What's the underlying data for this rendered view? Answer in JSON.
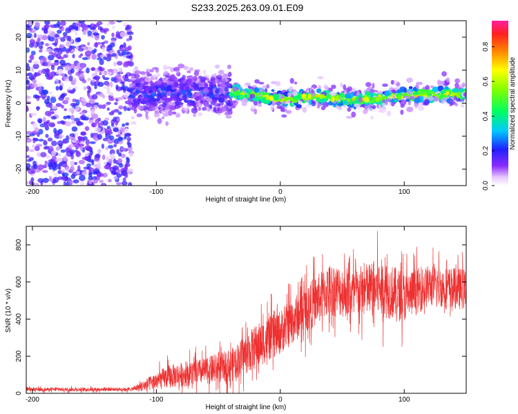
{
  "title": "S233.2025.263.09.01.E09",
  "chart_data": [
    {
      "type": "heatmap",
      "name": "spectrogram",
      "title": "S233.2025.263.09.01.E09",
      "xlabel": "Height of straight line (km)",
      "ylabel": "Frequency (Hz)",
      "xlim": [
        -205,
        150
      ],
      "ylim": [
        -25,
        25
      ],
      "xticks": [
        -200,
        -100,
        0,
        100
      ],
      "yticks": [
        -20,
        -10,
        0,
        10,
        20
      ],
      "colorbar": {
        "label": "Normalized spectral amplitude",
        "range": [
          0,
          0.95
        ],
        "ticks": [
          "0.0",
          "0.2",
          "0.4",
          "0.6",
          "0.8"
        ]
      },
      "description_regions": [
        {
          "x_range": [
            -205,
            -120
          ],
          "freq_spread_hz": 25,
          "mean_amplitude": 0.12
        },
        {
          "x_range": [
            -120,
            -40
          ],
          "freq_spread_hz": 10,
          "mean_amplitude": 0.2
        },
        {
          "x_range": [
            -40,
            150
          ],
          "freq_center_hz": 2,
          "freq_spread_hz": 3,
          "mean_amplitude": 0.6
        }
      ],
      "ridge_points": [
        {
          "x": -40,
          "y": 3.5
        },
        {
          "x": -20,
          "y": 2.5
        },
        {
          "x": 0,
          "y": 1.0
        },
        {
          "x": 20,
          "y": 2.0
        },
        {
          "x": 40,
          "y": 1.5
        },
        {
          "x": 60,
          "y": 1.0
        },
        {
          "x": 80,
          "y": 1.5
        },
        {
          "x": 100,
          "y": 2.5
        },
        {
          "x": 120,
          "y": 2.5
        },
        {
          "x": 140,
          "y": 3.0
        }
      ]
    },
    {
      "type": "line",
      "name": "snr",
      "xlabel": "Height of straight line (km)",
      "ylabel": "SNR (10 * v/v)",
      "xlim": [
        -205,
        150
      ],
      "ylim": [
        0,
        900
      ],
      "xticks": [
        -200,
        -100,
        0,
        100
      ],
      "yticks": [
        0,
        200,
        400,
        600,
        800
      ],
      "color": "#ee3030",
      "envelope": [
        {
          "x": -205,
          "mean": 20,
          "spread": 12
        },
        {
          "x": -120,
          "mean": 22,
          "spread": 12
        },
        {
          "x": -110,
          "mean": 40,
          "spread": 40
        },
        {
          "x": -90,
          "mean": 90,
          "spread": 80
        },
        {
          "x": -60,
          "mean": 120,
          "spread": 90
        },
        {
          "x": -40,
          "mean": 150,
          "spread": 110
        },
        {
          "x": -20,
          "mean": 250,
          "spread": 150
        },
        {
          "x": 0,
          "mean": 330,
          "spread": 150
        },
        {
          "x": 20,
          "mean": 450,
          "spread": 160
        },
        {
          "x": 40,
          "mean": 560,
          "spread": 180
        },
        {
          "x": 60,
          "mean": 540,
          "spread": 170
        },
        {
          "x": 80,
          "mean": 570,
          "spread": 200
        },
        {
          "x": 100,
          "mean": 520,
          "spread": 170
        },
        {
          "x": 120,
          "mean": 580,
          "spread": 140
        },
        {
          "x": 150,
          "mean": 560,
          "spread": 140
        }
      ]
    }
  ]
}
